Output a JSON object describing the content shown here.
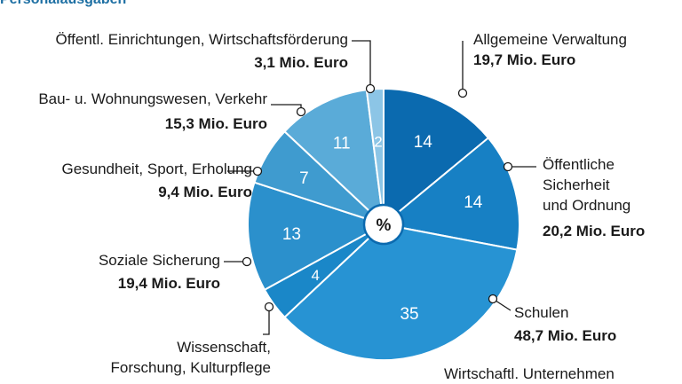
{
  "header": {
    "title": "Personalausgaben"
  },
  "chart_data": {
    "type": "pie",
    "center_label": "%",
    "slices": [
      {
        "name": "Allgemeine Verwaltung",
        "value": 14,
        "amount": "19,7 Mio. Euro",
        "color": "#0b6aaf"
      },
      {
        "name": "Öffentliche Sicherheit und Ordnung",
        "value": 14,
        "amount": "20,2 Mio. Euro",
        "color": "#1780c4"
      },
      {
        "name": "Schulen",
        "value": 35,
        "amount": "48,7 Mio. Euro",
        "color": "#2793d3"
      },
      {
        "name": "Wissenschaft, Forschung, Kulturpflege",
        "value": 4,
        "amount": "",
        "color": "#1a87c8"
      },
      {
        "name": "Soziale Sicherung",
        "value": 13,
        "amount": "19,4 Mio. Euro",
        "color": "#2b90cc"
      },
      {
        "name": "Gesundheit, Sport, Erholung",
        "value": 7,
        "amount": "9,4 Mio. Euro",
        "color": "#3f9bcf"
      },
      {
        "name": "Bau- u. Wohnungswesen, Verkehr",
        "value": 11,
        "amount": "15,3 Mio. Euro",
        "color": "#5aabd8"
      },
      {
        "name": "Öffentl. Einrichtungen, Wirtschaftsförderung",
        "value": 2,
        "amount": "3,1 Mio. Euro",
        "color": "#8cc5e6"
      }
    ],
    "partial_label": "Wirtschaftl. Unternehmen"
  },
  "labels": {
    "allg_name": "Allgemeine Verwaltung",
    "allg_amt": "19,7 Mio. Euro",
    "sich_l1": "Öffentliche",
    "sich_l2": "Sicherheit",
    "sich_l3": "und Ordnung",
    "sich_amt": "20,2 Mio. Euro",
    "schul_name": "Schulen",
    "schul_amt": "48,7 Mio. Euro",
    "wiss_l1": "Wissenschaft,",
    "wiss_l2": "Forschung, Kulturpflege",
    "soz_name": "Soziale Sicherung",
    "soz_amt": "19,4 Mio. Euro",
    "ges_name": "Gesundheit, Sport, Erholung",
    "ges_amt": "9,4 Mio. Euro",
    "bau_name": "Bau- u. Wohnungswesen, Verkehr",
    "bau_amt": "15,3 Mio. Euro",
    "oeff_name": "Öffentl. Einrichtungen, Wirtschaftsförderung",
    "oeff_amt": "3,1 Mio. Euro",
    "wirt_name": "Wirtschaftl. Unternehmen"
  }
}
